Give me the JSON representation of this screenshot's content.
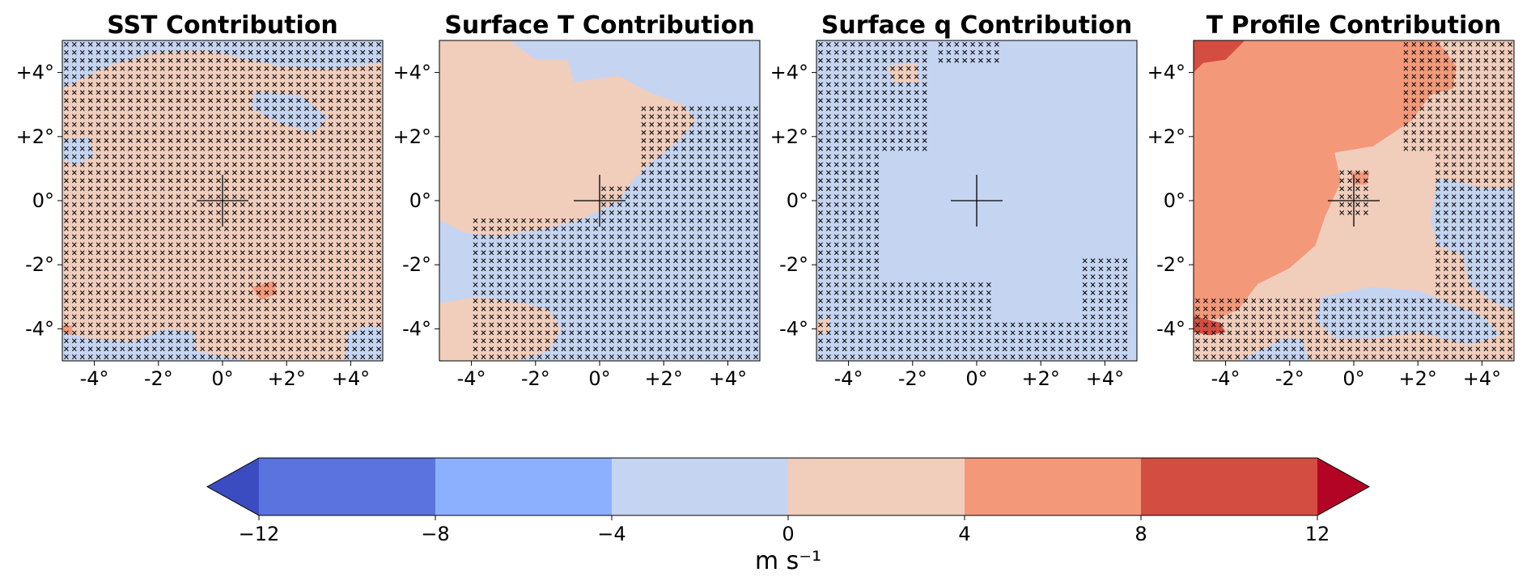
{
  "chart_data": [
    {
      "type": "heatmap",
      "title": "SST Contribution",
      "xlim": [
        -5,
        5
      ],
      "ylim": [
        -5,
        5
      ],
      "x_ticks": [
        "-4°",
        "-2°",
        "0°",
        "+2°",
        "+4°"
      ],
      "y_ticks": [
        "+4°",
        "+2°",
        "0°",
        "-2°",
        "-4°"
      ],
      "background_value": 2,
      "regions": [
        {
          "value": -2,
          "polygon": [
            [
              -5,
              5
            ],
            [
              5,
              5
            ],
            [
              5,
              4.3
            ],
            [
              3.4,
              4.1
            ],
            [
              1.8,
              4.2
            ],
            [
              0.8,
              4.4
            ],
            [
              -0.6,
              4.7
            ],
            [
              -2.2,
              4.6
            ],
            [
              -3.6,
              4.2
            ],
            [
              -5,
              3.5
            ]
          ]
        },
        {
          "value": -2,
          "polygon": [
            [
              1.0,
              3.4
            ],
            [
              2.4,
              3.3
            ],
            [
              3.3,
              2.6
            ],
            [
              2.8,
              2.1
            ],
            [
              1.6,
              2.5
            ],
            [
              0.9,
              2.9
            ]
          ]
        },
        {
          "value": -2,
          "polygon": [
            [
              -5,
              1.9
            ],
            [
              -4.2,
              2.0
            ],
            [
              -4.0,
              1.4
            ],
            [
              -4.6,
              1.1
            ],
            [
              -5,
              1.3
            ]
          ]
        },
        {
          "value": -2,
          "polygon": [
            [
              -5,
              -5
            ],
            [
              -5,
              -4.1
            ],
            [
              -4.2,
              -4.3
            ],
            [
              -2.8,
              -4.4
            ],
            [
              -1.8,
              -4.0
            ],
            [
              -0.9,
              -4.1
            ],
            [
              -0.8,
              -4.7
            ],
            [
              0.8,
              -5
            ]
          ]
        },
        {
          "value": -2,
          "polygon": [
            [
              3.8,
              -5
            ],
            [
              3.9,
              -4.1
            ],
            [
              4.6,
              -3.9
            ],
            [
              5,
              -4.0
            ],
            [
              5,
              -5
            ]
          ]
        },
        {
          "value": 2,
          "polygon": [
            [
              -4.4,
              0.6
            ],
            [
              -3.7,
              1.8
            ],
            [
              -2.5,
              2.3
            ],
            [
              -1.0,
              2.2
            ],
            [
              0.2,
              1.7
            ],
            [
              1.4,
              1.5
            ],
            [
              2.6,
              1.6
            ],
            [
              3.6,
              0.8
            ],
            [
              3.8,
              -0.4
            ],
            [
              3.3,
              -1.2
            ],
            [
              2.3,
              -1.7
            ],
            [
              1.2,
              -2.4
            ],
            [
              -0.3,
              -2.8
            ],
            [
              -1.8,
              -2.4
            ],
            [
              -3.0,
              -1.4
            ],
            [
              -4.1,
              -0.6
            ]
          ]
        },
        {
          "value": 6,
          "polygon": [
            [
              0.9,
              -2.7
            ],
            [
              1.6,
              -2.5
            ],
            [
              1.7,
              -2.9
            ],
            [
              1.2,
              -3.1
            ]
          ]
        },
        {
          "value": 6,
          "polygon": [
            [
              -5,
              -4.1
            ],
            [
              -4.7,
              -4.2
            ],
            [
              -4.7,
              -3.9
            ],
            [
              -5,
              -3.9
            ]
          ]
        }
      ],
      "crosses": [
        {
          "x": [
            -5,
            5
          ],
          "y": [
            -5,
            5
          ]
        }
      ]
    },
    {
      "type": "heatmap",
      "title": "Surface T Contribution",
      "xlim": [
        -5,
        5
      ],
      "ylim": [
        -5,
        5
      ],
      "x_ticks": [
        "-4°",
        "-2°",
        "0°",
        "+2°",
        "+4°"
      ],
      "y_ticks": [
        "+4°",
        "+2°",
        "0°",
        "-2°",
        "-4°"
      ],
      "background_value": -2,
      "regions": [
        {
          "value": 2,
          "polygon": [
            [
              -5,
              5
            ],
            [
              -2.8,
              5
            ],
            [
              -2.0,
              4.4
            ],
            [
              -1.0,
              4.4
            ],
            [
              -0.8,
              3.7
            ],
            [
              0.6,
              3.9
            ],
            [
              1.5,
              3.4
            ],
            [
              2.6,
              3.0
            ],
            [
              3.0,
              2.5
            ],
            [
              2.5,
              1.9
            ],
            [
              1.6,
              1.2
            ],
            [
              1.0,
              0.6
            ],
            [
              0.6,
              0.0
            ],
            [
              -0.6,
              -0.6
            ],
            [
              -1.8,
              -0.9
            ],
            [
              -3.2,
              -1.1
            ],
            [
              -4.2,
              -1.0
            ],
            [
              -5,
              -0.6
            ]
          ]
        },
        {
          "value": 2,
          "polygon": [
            [
              -5,
              -3.2
            ],
            [
              -3.8,
              -3.0
            ],
            [
              -2.4,
              -3.2
            ],
            [
              -1.6,
              -3.4
            ],
            [
              -1.2,
              -4.0
            ],
            [
              -1.6,
              -4.7
            ],
            [
              -2.6,
              -5
            ],
            [
              -5,
              -5
            ]
          ]
        }
      ],
      "crosses": [
        {
          "x": [
            -4,
            5
          ],
          "y": [
            -5,
            -0.4
          ]
        },
        {
          "x": [
            0,
            5
          ],
          "y": [
            -0.4,
            0.6
          ]
        },
        {
          "x": [
            1.2,
            5
          ],
          "y": [
            0.6,
            3.0
          ]
        }
      ]
    },
    {
      "type": "heatmap",
      "title": "Surface q Contribution",
      "xlim": [
        -5,
        5
      ],
      "ylim": [
        -5,
        5
      ],
      "x_ticks": [
        "-4°",
        "-2°",
        "0°",
        "+2°",
        "+4°"
      ],
      "y_ticks": [
        "+4°",
        "+2°",
        "0°",
        "-2°",
        "-4°"
      ],
      "background_value": -2,
      "regions": [
        {
          "value": 2,
          "polygon": [
            [
              -2.8,
              4.2
            ],
            [
              -1.9,
              4.3
            ],
            [
              -1.8,
              3.7
            ],
            [
              -2.6,
              3.7
            ]
          ]
        },
        {
          "value": 2,
          "polygon": [
            [
              -5,
              -3.8
            ],
            [
              -4.6,
              -3.6
            ],
            [
              -4.6,
              -4.1
            ],
            [
              -5,
              -4.2
            ]
          ]
        }
      ],
      "crosses": [
        {
          "x": [
            -5,
            -3.0
          ],
          "y": [
            -5,
            5
          ]
        },
        {
          "x": [
            -3.0,
            0.5
          ],
          "y": [
            -5,
            -2.6
          ]
        },
        {
          "x": [
            -3.0,
            -1.5
          ],
          "y": [
            1.6,
            5
          ]
        },
        {
          "x": [
            0.5,
            4.5
          ],
          "y": [
            -5,
            -3.8
          ]
        },
        {
          "x": [
            3.2,
            4.8
          ],
          "y": [
            -5,
            -1.8
          ]
        },
        {
          "x": [
            -1.2,
            0.8
          ],
          "y": [
            4.2,
            5
          ]
        }
      ]
    },
    {
      "type": "heatmap",
      "title": "T Profile Contribution",
      "xlim": [
        -5,
        5
      ],
      "ylim": [
        -5,
        5
      ],
      "x_ticks": [
        "-4°",
        "-2°",
        "0°",
        "+2°",
        "+4°"
      ],
      "y_ticks": [
        "+4°",
        "+2°",
        "0°",
        "-2°",
        "-4°"
      ],
      "background_value": 2,
      "regions": [
        {
          "value": 6,
          "polygon": [
            [
              -5,
              5
            ],
            [
              2.6,
              5
            ],
            [
              3.2,
              4.2
            ],
            [
              3.1,
              3.5
            ],
            [
              2.4,
              3.3
            ],
            [
              1.8,
              2.5
            ],
            [
              0.6,
              1.7
            ],
            [
              -0.6,
              1.5
            ],
            [
              -0.4,
              0.6
            ],
            [
              -0.9,
              -0.5
            ],
            [
              -1.2,
              -1.4
            ],
            [
              -2.0,
              -2.1
            ],
            [
              -3.0,
              -2.6
            ],
            [
              -3.6,
              -3.4
            ],
            [
              -4.3,
              -3.7
            ],
            [
              -5,
              -3.7
            ]
          ]
        },
        {
          "value": 6,
          "polygon": [
            [
              -0.1,
              0.9
            ],
            [
              0.5,
              0.9
            ],
            [
              0.4,
              0.5
            ],
            [
              0.0,
              0.5
            ]
          ]
        },
        {
          "value": 10,
          "polygon": [
            [
              -5,
              5
            ],
            [
              -3.4,
              5
            ],
            [
              -4.0,
              4.4
            ],
            [
              -4.7,
              4.3
            ],
            [
              -5,
              4.0
            ]
          ]
        },
        {
          "value": 10,
          "polygon": [
            [
              -5,
              -3.6
            ],
            [
              -4.2,
              -3.8
            ],
            [
              -4.0,
              -4.1
            ],
            [
              -4.5,
              -4.2
            ],
            [
              -5,
              -4.1
            ]
          ]
        },
        {
          "value": -2,
          "polygon": [
            [
              2.6,
              0.7
            ],
            [
              3.2,
              0.6
            ],
            [
              4.0,
              0.4
            ],
            [
              5,
              0.4
            ],
            [
              5,
              -3.4
            ],
            [
              4.4,
              -3.2
            ],
            [
              3.6,
              -2.6
            ],
            [
              3.4,
              -1.7
            ],
            [
              2.6,
              -1.4
            ],
            [
              2.4,
              -0.6
            ]
          ]
        },
        {
          "value": -2,
          "polygon": [
            [
              -1.0,
              -3.0
            ],
            [
              0.5,
              -2.7
            ],
            [
              2.0,
              -2.8
            ],
            [
              3.0,
              -3.2
            ],
            [
              4.0,
              -3.6
            ],
            [
              4.6,
              -4.2
            ],
            [
              3.6,
              -4.5
            ],
            [
              2.0,
              -4.1
            ],
            [
              0.6,
              -4.3
            ],
            [
              -0.6,
              -4.3
            ],
            [
              -1.2,
              -3.7
            ]
          ]
        },
        {
          "value": -2,
          "polygon": [
            [
              -3.6,
              -5
            ],
            [
              -2.2,
              -4.3
            ],
            [
              -1.6,
              -4.3
            ],
            [
              -1.4,
              -5
            ]
          ]
        }
      ],
      "crosses": [
        {
          "x": [
            -5,
            5
          ],
          "y": [
            -5,
            -2.9
          ]
        },
        {
          "x": [
            2.4,
            5
          ],
          "y": [
            -2.9,
            1.6
          ]
        },
        {
          "x": [
            1.4,
            5
          ],
          "y": [
            1.6,
            5
          ]
        },
        {
          "x": [
            -0.6,
            0.6
          ],
          "y": [
            -0.4,
            1.0
          ]
        }
      ]
    }
  ],
  "colorbar": {
    "ticks": [
      "−12",
      "−8",
      "−4",
      "0",
      "4",
      "8",
      "12"
    ],
    "label": "m s⁻¹",
    "extend": "both",
    "colors": [
      "#3b4cc0",
      "#5a73df",
      "#8db0fe",
      "#c5d5f1",
      "#f1cdbc",
      "#f4987a",
      "#d44d41",
      "#b40426"
    ]
  },
  "cross_color": "#111111"
}
